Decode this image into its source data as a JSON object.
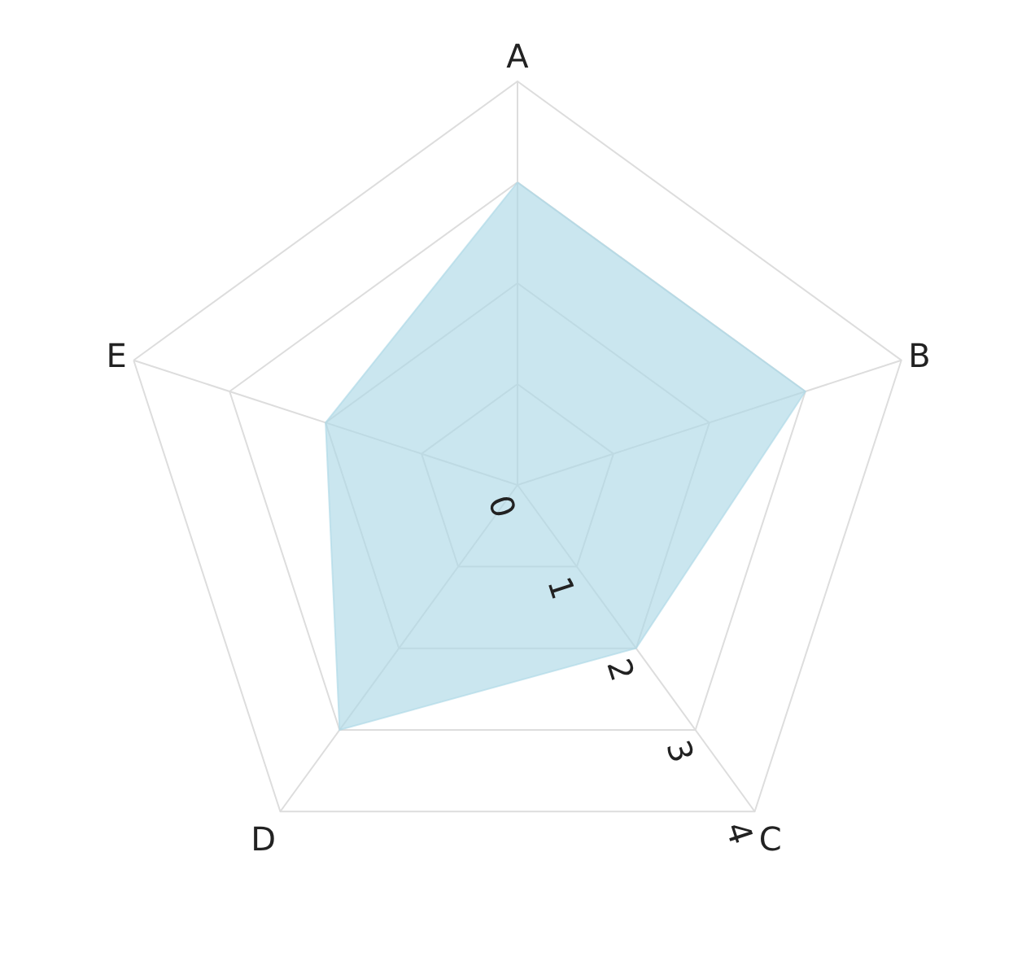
{
  "chart_data": {
    "type": "radar",
    "categories": [
      "A",
      "B",
      "C",
      "D",
      "E"
    ],
    "series": [
      {
        "color": "#add8e6",
        "values": [
          3,
          3,
          2,
          3,
          2
        ]
      }
    ],
    "ylim": [
      0,
      4
    ],
    "yticks": [
      0,
      1,
      2,
      3,
      4
    ],
    "grid": true
  }
}
